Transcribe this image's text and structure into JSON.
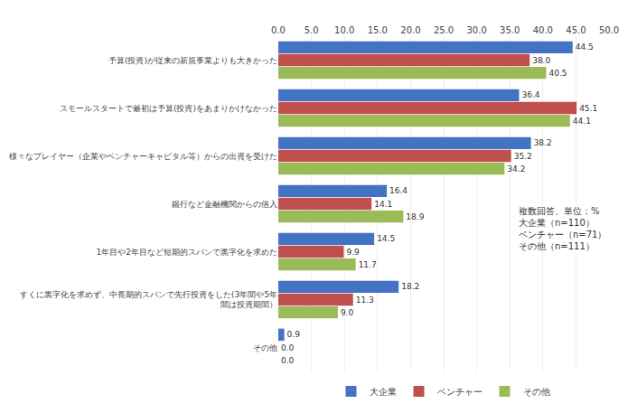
{
  "chart_data": {
    "type": "bar",
    "orientation": "horizontal",
    "categories": [
      "予算(投資)が従来の新規事業よりも大きかった",
      "スモールスタートで最初は予算(投資)をあまりかけなかった",
      "様々なプレイヤー（企業やベンチャーキャピタル等）からの出資を受けた",
      "銀行など金融機関からの借入",
      "1年目や2年目など短期的スパンで黒字化を求めた",
      "すくに黒字化を求めず、中長期的スパンで先行投資をした(3年間や5年\n間は投資期間）",
      "その他"
    ],
    "series": [
      {
        "name": "大企業",
        "color": "#4472c4",
        "values": [
          44.5,
          36.4,
          38.2,
          16.4,
          14.5,
          18.2,
          0.9
        ],
        "value_labels": [
          "44.5",
          "36.4",
          "38.2",
          "16.4",
          "14.5",
          "18.2",
          "0.9"
        ]
      },
      {
        "name": "ベンチャー",
        "color": "#c0504d",
        "values": [
          38.0,
          45.1,
          35.2,
          14.1,
          9.9,
          11.3,
          0.0
        ],
        "value_labels": [
          "38.0",
          "45.1",
          "35.2",
          "14.1",
          "9.9",
          "11.3",
          "0.0"
        ]
      },
      {
        "name": "その他",
        "color": "#9bbb59",
        "values": [
          40.5,
          44.1,
          34.2,
          18.9,
          11.7,
          9.0,
          0.0
        ],
        "value_labels": [
          "40.5",
          "44.1",
          "34.2",
          "18.9",
          "11.7",
          "9.0",
          "0.0"
        ]
      }
    ],
    "xlim": [
      0,
      50
    ],
    "xticks": [
      {
        "value": 0,
        "label": "0.0"
      },
      {
        "value": 5,
        "label": "5.0"
      },
      {
        "value": 10,
        "label": "10.0"
      },
      {
        "value": 15,
        "label": "15.0"
      },
      {
        "value": 20,
        "label": "20.0"
      },
      {
        "value": 25,
        "label": "25.0"
      },
      {
        "value": 30,
        "label": "30.0"
      },
      {
        "value": 35,
        "label": "35.0"
      },
      {
        "value": 40,
        "label": "40.0"
      },
      {
        "value": 45,
        "label": "45.0"
      },
      {
        "value": 50,
        "label": "50.0"
      }
    ],
    "grid": true,
    "data_labels": true,
    "legend": "bottom",
    "annotations": [
      "複数回答、単位：%\n大企業（n=110）\nベンチャー（n=71）\nその他（n=111）"
    ]
  }
}
